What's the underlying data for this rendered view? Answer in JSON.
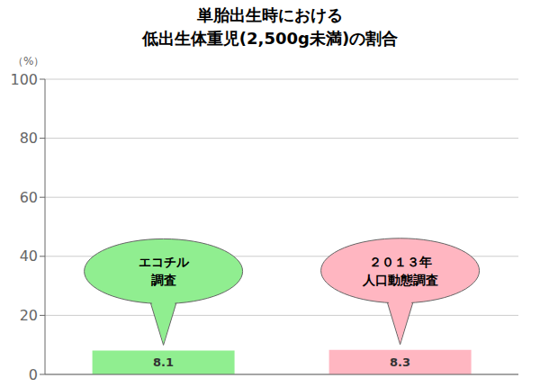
{
  "chart_data": {
    "type": "bar",
    "title": "単胎出生時における",
    "subtitle": "低出生体重児(2,500g未満)の割合",
    "y_label": "（%）",
    "categories": [
      null,
      null
    ],
    "values": [
      8.1,
      8.3
    ],
    "colors": [
      "#90EE90",
      "#FFB6C1"
    ],
    "annotations": [
      [
        "エコチル",
        "調査"
      ],
      [
        "２０１３年",
        "人口動態調査"
      ]
    ],
    "ylim": [
      0,
      100
    ],
    "yticks": [
      0,
      20,
      40,
      60,
      80,
      100
    ],
    "grid": true,
    "data_labels": true,
    "tick_labels": "y"
  }
}
